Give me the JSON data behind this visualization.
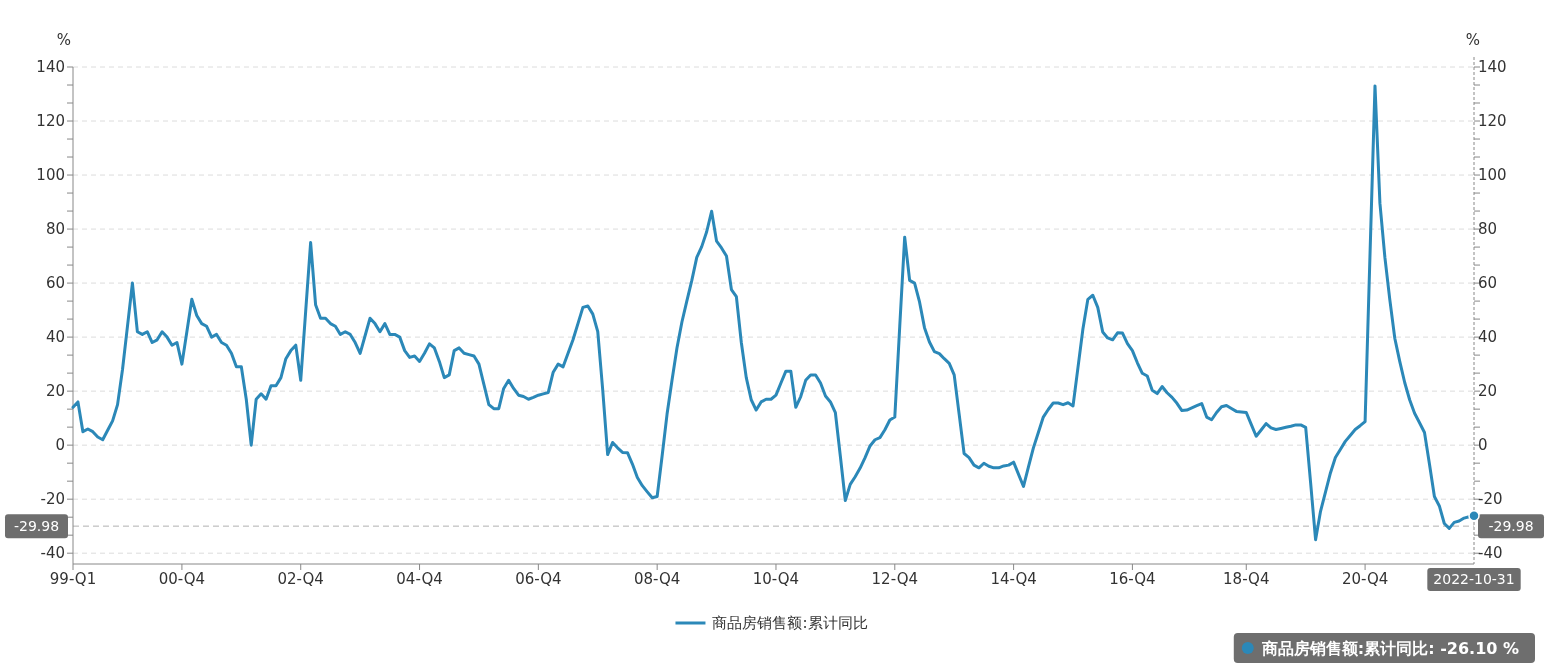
{
  "chart_data": {
    "type": "line",
    "ylabel": "%",
    "y2label": "%",
    "grid": "y",
    "legend": "bottom",
    "line_style": "solid",
    "ylim": [
      -44,
      140
    ],
    "y2lim": [
      -44,
      140
    ],
    "categories": [
      "99-Q1",
      null,
      null,
      null,
      null,
      null,
      null,
      null,
      null,
      null,
      null,
      null,
      null,
      null,
      null,
      null,
      null,
      null,
      null,
      null,
      null,
      null,
      "00-Q4",
      null,
      null,
      null,
      null,
      null,
      null,
      null,
      null,
      null,
      null,
      null,
      null,
      null,
      null,
      null,
      null,
      null,
      null,
      null,
      null,
      null,
      null,
      null,
      "02-Q4",
      null,
      null,
      null,
      null,
      null,
      null,
      null,
      null,
      null,
      null,
      null,
      null,
      null,
      null,
      null,
      null,
      null,
      null,
      null,
      null,
      null,
      null,
      null,
      "04-Q4",
      null,
      null,
      null,
      null,
      null,
      null,
      null,
      null,
      null,
      null,
      null,
      null,
      null,
      null,
      null,
      null,
      null,
      null,
      null,
      null,
      null,
      null,
      null,
      "06-Q4",
      null,
      null,
      null,
      null,
      null,
      null,
      null,
      null,
      null,
      null,
      null,
      null,
      null,
      null,
      null,
      null,
      null,
      null,
      null,
      null,
      null,
      null,
      null,
      "08-Q4",
      null,
      null,
      null,
      null,
      null,
      null,
      null,
      null,
      null,
      null,
      null,
      null,
      null,
      null,
      null,
      null,
      null,
      null,
      null,
      null,
      null,
      null,
      null,
      "10-Q4",
      null,
      null,
      null,
      null,
      null,
      null,
      null,
      null,
      null,
      null,
      null,
      null,
      null,
      null,
      null,
      null,
      null,
      null,
      null,
      null,
      null,
      null,
      null,
      "12-Q4",
      null,
      null,
      null,
      null,
      null,
      null,
      null,
      null,
      null,
      null,
      null,
      null,
      null,
      null,
      null,
      null,
      null,
      null,
      null,
      null,
      null,
      null,
      null,
      "14-Q4",
      null,
      null,
      null,
      null,
      null,
      null,
      null,
      null,
      null,
      null,
      null,
      null,
      null,
      null,
      null,
      null,
      null,
      null,
      null,
      null,
      null,
      null,
      null,
      "16-Q4",
      null,
      null,
      null,
      null,
      null,
      null,
      null,
      null,
      null,
      null,
      null,
      null,
      null,
      null,
      null,
      null,
      null,
      null,
      null,
      null,
      null,
      null,
      "18-Q4",
      null,
      null,
      null,
      null,
      null,
      null,
      null,
      null,
      null,
      null,
      null,
      null,
      null,
      null,
      null,
      null,
      null,
      null,
      null,
      null,
      null,
      null,
      null,
      "20-Q4",
      null,
      null,
      null,
      null,
      null,
      null,
      null,
      null,
      null,
      null,
      null,
      null,
      null,
      null,
      null,
      null,
      null,
      null,
      null,
      null,
      null,
      null
    ],
    "yticks": [
      -40,
      {
        "value": -33.33,
        "label": null
      },
      {
        "value": -26.67,
        "label": null
      },
      -20,
      {
        "value": -13.33,
        "label": null
      },
      {
        "value": -6.67,
        "label": null
      },
      0,
      {
        "value": 6.67,
        "label": null
      },
      {
        "value": 13.33,
        "label": null
      },
      20,
      {
        "value": 26.67,
        "label": null
      },
      {
        "value": 33.33,
        "label": null
      },
      40,
      {
        "value": 46.67,
        "label": null
      },
      {
        "value": 53.33,
        "label": null
      },
      60,
      {
        "value": 66.67,
        "label": null
      },
      {
        "value": 73.33,
        "label": null
      },
      80,
      {
        "value": 86.67,
        "label": null
      },
      {
        "value": 93.33,
        "label": null
      },
      100,
      {
        "value": 106.67,
        "label": null
      },
      {
        "value": 113.33,
        "label": null
      },
      120,
      {
        "value": 126.67,
        "label": null
      },
      {
        "value": 133.33,
        "label": null
      },
      140
    ],
    "y2ticks": [
      -40,
      {
        "value": -33.33,
        "label": null
      },
      {
        "value": -26.67,
        "label": null
      },
      -20,
      {
        "value": -13.33,
        "label": null
      },
      {
        "value": -6.67,
        "label": null
      },
      0,
      {
        "value": 6.67,
        "label": null
      },
      {
        "value": 13.33,
        "label": null
      },
      20,
      {
        "value": 26.67,
        "label": null
      },
      {
        "value": 33.33,
        "label": null
      },
      40,
      {
        "value": 46.67,
        "label": null
      },
      {
        "value": 53.33,
        "label": null
      },
      60,
      {
        "value": 66.67,
        "label": null
      },
      {
        "value": 73.33,
        "label": null
      },
      80,
      {
        "value": 86.67,
        "label": null
      },
      {
        "value": 93.33,
        "label": null
      },
      100,
      {
        "value": 106.67,
        "label": null
      },
      {
        "value": 113.33,
        "label": null
      },
      120,
      {
        "value": 126.67,
        "label": null
      },
      {
        "value": 133.33,
        "label": null
      },
      140
    ],
    "ref_lines": [
      {
        "axis": "y",
        "value": -29.98,
        "label": "-29.98",
        "color": "#b0b0b0",
        "line_style": "dashed"
      }
    ],
    "annotations": [
      "商品房销售额:累计同比: -26.10 %",
      "2022-10-31"
    ],
    "series": [
      {
        "name": "商品房销售额:累计同比",
        "color": "#2b88b8",
        "values": [
          14,
          16,
          5,
          6,
          5,
          3,
          2,
          5.5,
          9,
          15,
          28,
          44,
          60,
          42,
          41,
          42,
          38,
          39,
          42,
          40,
          37,
          38,
          30,
          42,
          54,
          48,
          45,
          44,
          40,
          41,
          38,
          37,
          34,
          29,
          29,
          17,
          0,
          17,
          19,
          17,
          22,
          22,
          25,
          32,
          35,
          37,
          24,
          49.5,
          75,
          52,
          47,
          47,
          45,
          44,
          41,
          42,
          41,
          38,
          34,
          40.5,
          47,
          45,
          42,
          45,
          41,
          41,
          40,
          35,
          32.5,
          33,
          31,
          34,
          37.5,
          36,
          31,
          25,
          26,
          35,
          36,
          34,
          33.5,
          33,
          30,
          22.5,
          15,
          13.5,
          13.5,
          21,
          24,
          21,
          18.5,
          18,
          17,
          17.7,
          18.5,
          19,
          19.5,
          27,
          30,
          29,
          34,
          39,
          45,
          51,
          51.5,
          48.5,
          42,
          20.5,
          -3.5,
          1,
          -1,
          -2.7,
          -2.8,
          -7,
          -12,
          -15,
          -17.3,
          -19.5,
          -19,
          -4,
          11.5,
          24,
          36,
          45.6,
          53.4,
          61,
          69.5,
          73.5,
          79,
          86.6,
          75.5,
          73,
          70,
          57.6,
          55,
          38,
          25,
          16.8,
          13,
          16,
          17,
          17,
          18.5,
          23,
          27.4,
          27.4,
          14,
          18,
          24,
          26,
          26,
          23,
          18.2,
          16,
          12,
          -4,
          -20.5,
          -14.5,
          -11.7,
          -8.5,
          -4.6,
          -0.3,
          2,
          2.8,
          5.7,
          9.3,
          10.4,
          44,
          77,
          61,
          60,
          53,
          43.5,
          38.2,
          34.6,
          33.9,
          32,
          30.3,
          26,
          11.5,
          -3.1,
          -4.6,
          -7.4,
          -8.4,
          -6.7,
          -7.8,
          -8.4,
          -8.4,
          -7.7,
          -7.4,
          -6.3,
          -10.8,
          -15.3,
          -8,
          -1,
          4.7,
          10.4,
          13.2,
          15.6,
          15.6,
          15,
          15.7,
          14.5,
          28.7,
          43,
          54,
          55.5,
          51,
          41.9,
          39.7,
          39,
          41.6,
          41.5,
          37.6,
          35,
          30.5,
          26.6,
          25.6,
          20.3,
          19.1,
          21.7,
          19.4,
          17.7,
          15.5,
          12.8,
          13,
          13.8,
          14.6,
          15.4,
          10.4,
          9.4,
          12.1,
          14.2,
          14.7,
          13.6,
          12.5,
          12.3,
          12.1,
          7.7,
          3.3,
          5.6,
          8,
          6.4,
          5.8,
          6.2,
          6.6,
          7,
          7.5,
          7.5,
          6.6,
          -14,
          -35,
          -24.5,
          -17.4,
          -10.3,
          -4.6,
          -1.6,
          1.4,
          3.6,
          5.8,
          7.2,
          8.7,
          71,
          133,
          89.5,
          69.5,
          53.8,
          39.6,
          31,
          23.2,
          16.8,
          11.8,
          8.3,
          4.7,
          -7,
          -19,
          -22.5,
          -29,
          -30.8,
          -28.6,
          -28.1,
          -27,
          -26.5,
          -26.1
        ]
      }
    ]
  }
}
